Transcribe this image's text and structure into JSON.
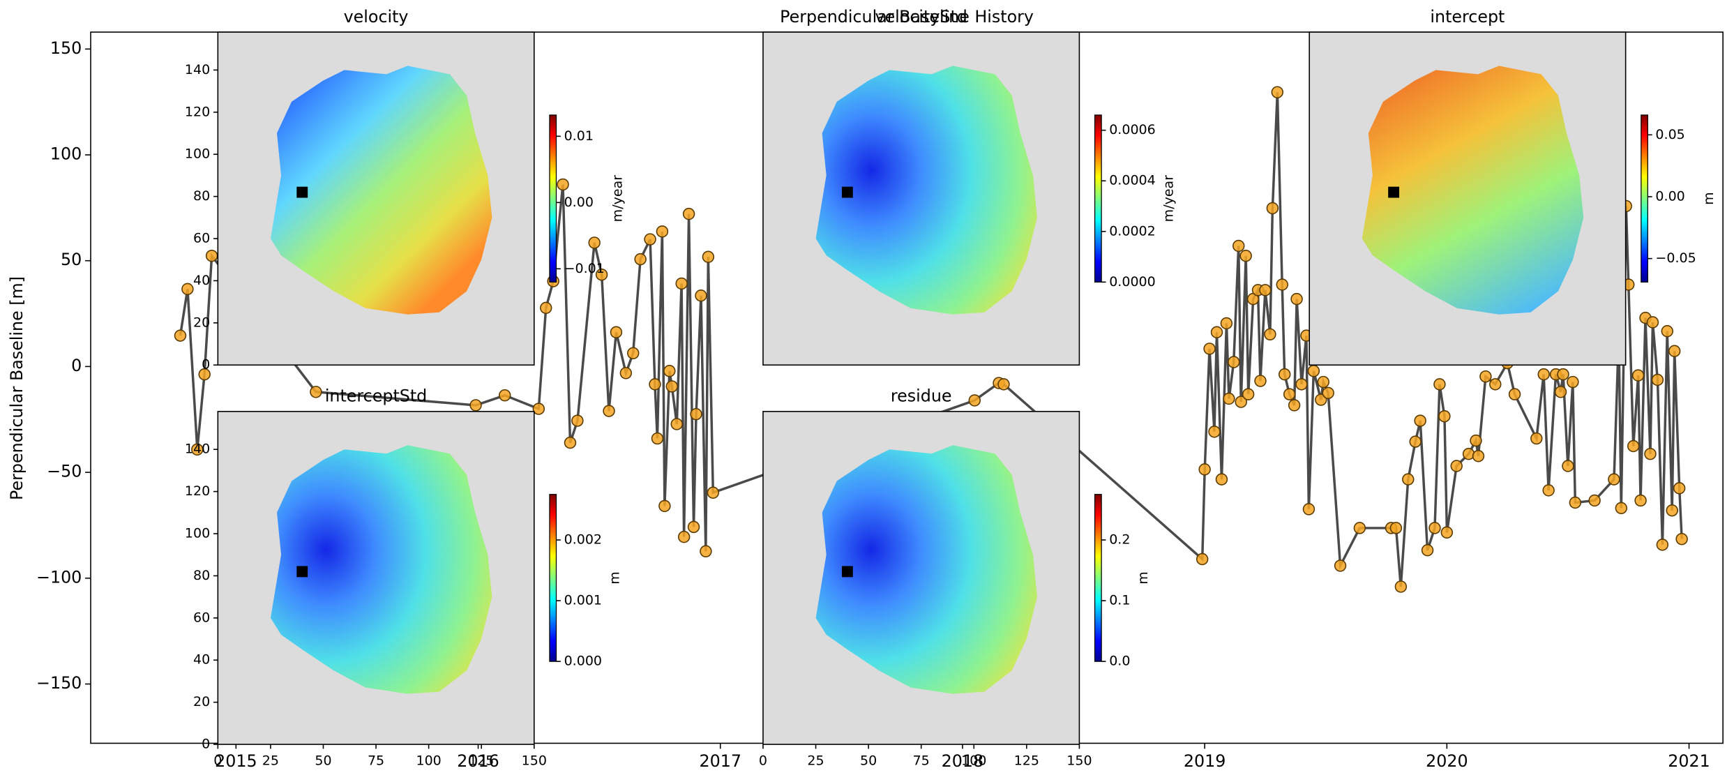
{
  "chart_data": [
    {
      "type": "line",
      "title": "Perpendicular Baseline History",
      "ylabel": "Perpendicular Baseline [m]",
      "x": [
        2014.77,
        2014.8,
        2014.84,
        2014.87,
        2014.9,
        2015.33,
        2015.99,
        2016.11,
        2016.25,
        2016.28,
        2016.31,
        2016.35,
        2016.38,
        2016.41,
        2016.48,
        2016.51,
        2016.54,
        2016.57,
        2016.61,
        2016.64,
        2016.67,
        2016.71,
        2016.73,
        2016.74,
        2016.76,
        2016.77,
        2016.79,
        2016.8,
        2016.82,
        2016.84,
        2016.85,
        2016.87,
        2016.89,
        2016.9,
        2016.92,
        2016.94,
        2016.95,
        2016.97,
        2018.05,
        2018.15,
        2018.17,
        2018.99,
        2019.0,
        2019.02,
        2019.04,
        2019.05,
        2019.07,
        2019.09,
        2019.1,
        2019.12,
        2019.14,
        2019.15,
        2019.17,
        2019.18,
        2019.2,
        2019.22,
        2019.23,
        2019.25,
        2019.27,
        2019.28,
        2019.3,
        2019.32,
        2019.33,
        2019.35,
        2019.37,
        2019.38,
        2019.4,
        2019.42,
        2019.43,
        2019.45,
        2019.48,
        2019.49,
        2019.51,
        2019.56,
        2019.64,
        2019.77,
        2019.79,
        2019.81,
        2019.84,
        2019.87,
        2019.89,
        2019.92,
        2019.95,
        2019.97,
        2019.99,
        2020.0,
        2020.04,
        2020.09,
        2020.12,
        2020.13,
        2020.16,
        2020.2,
        2020.25,
        2020.28,
        2020.37,
        2020.4,
        2020.42,
        2020.45,
        2020.47,
        2020.48,
        2020.5,
        2020.52,
        2020.53,
        2020.61,
        2020.69,
        2020.71,
        2020.72,
        2020.74,
        2020.75,
        2020.77,
        2020.79,
        2020.8,
        2020.82,
        2020.84,
        2020.85,
        2020.87,
        2020.89,
        2020.91,
        2020.93,
        2020.94,
        2020.96,
        2020.97
      ],
      "values": [
        14.6,
        36.6,
        -39.2,
        -3.7,
        52.3,
        -12,
        -18.3,
        -13.6,
        -20,
        27.7,
        40.3,
        86,
        -36,
        -25.6,
        58.5,
        43.4,
        -21,
        16.2,
        -3.1,
        6.3,
        50.7,
        60.1,
        -8.4,
        -34,
        63.8,
        -65.9,
        -2.1,
        -9.4,
        -27.2,
        39.2,
        -80.5,
        72.1,
        -75.8,
        -22.5,
        33.5,
        -87.3,
        51.8,
        -59.6,
        -16,
        -7.8,
        -8.4,
        -91,
        -48.6,
        8.4,
        -30.8,
        16.2,
        -53.3,
        20.4,
        -15.2,
        2.1,
        57,
        -16.7,
        52.3,
        -13.1,
        31.9,
        36.1,
        -6.8,
        36.1,
        15.2,
        74.8,
        129.6,
        38.7,
        -3.7,
        -13.1,
        -18.3,
        31.9,
        -8.4,
        14.6,
        -67.4,
        -2.1,
        -15.7,
        -7.3,
        -12.5,
        -94.1,
        -76.3,
        -76.3,
        -76.3,
        -104,
        -53.3,
        -35.5,
        -25.6,
        -86.8,
        -76.3,
        -8.4,
        -23.5,
        -78.4,
        -47,
        -41.3,
        -35,
        -42.3,
        -4.7,
        -8.4,
        1.6,
        -13.1,
        -34,
        -3.7,
        -58.5,
        -3.7,
        -12,
        -3.7,
        -47,
        -7.3,
        -64.3,
        -63.3,
        -53.3,
        15.2,
        -66.9,
        75.8,
        38.7,
        -37.6,
        -4.2,
        -63.3,
        23,
        -41.3,
        20.9,
        -6.3,
        -84.2,
        16.7,
        -68,
        7.3,
        -57.5,
        -81.5
      ],
      "line_color": "#4a4a4a",
      "marker_color": "#f5a623",
      "xlim": [
        2014.4,
        2021.14
      ],
      "xticks": [
        2015,
        2016,
        2017,
        2018,
        2019,
        2020,
        2021
      ],
      "ylim": [
        -178,
        158
      ],
      "yticks": [
        {
          "value": -150,
          "label": "−150"
        },
        {
          "value": -100,
          "label": "−100"
        },
        {
          "value": -50,
          "label": "−50"
        },
        0,
        50,
        100,
        150
      ]
    },
    {
      "type": "image",
      "title": "velocity",
      "xlim": [
        0,
        150
      ],
      "ylim": [
        0,
        158
      ],
      "yticks": [
        0,
        20,
        40,
        60,
        80,
        100,
        120,
        140
      ],
      "colorbar": {
        "label": "m/year",
        "lim": [
          -0.012,
          0.0132
        ],
        "ticks": [
          {
            "value": -0.01,
            "label": "−0.01"
          },
          {
            "value": 0,
            "label": "0.00"
          },
          0.01
        ]
      }
    },
    {
      "type": "image",
      "title": "velocityStd",
      "xlim": [
        0,
        150
      ],
      "ylim": [
        0,
        158
      ],
      "colorbar": {
        "label": "m/year",
        "lim": [
          0,
          0.00066
        ],
        "ticks": [
          {
            "value": 0,
            "label": "0.0000"
          },
          {
            "value": 0.0002,
            "label": "0.0002"
          },
          {
            "value": 0.0004,
            "label": "0.0004"
          },
          {
            "value": 0.0006,
            "label": "0.0006"
          }
        ]
      }
    },
    {
      "type": "image",
      "title": "intercept",
      "xlim": [
        0,
        150
      ],
      "ylim": [
        0,
        158
      ],
      "colorbar": {
        "label": "m",
        "lim": [
          -0.069,
          0.066
        ],
        "ticks": [
          {
            "value": -0.05,
            "label": "−0.05"
          },
          {
            "value": 0,
            "label": "0.00"
          },
          0.05
        ]
      }
    },
    {
      "type": "image",
      "title": "interceptStd",
      "xlim": [
        0,
        150
      ],
      "ylim": [
        0,
        158
      ],
      "xticks": [
        0,
        25,
        50,
        75,
        100,
        125,
        150
      ],
      "yticks": [
        0,
        20,
        40,
        60,
        80,
        100,
        120,
        140
      ],
      "colorbar": {
        "label": "m",
        "lim": [
          0,
          0.00275
        ],
        "ticks": [
          {
            "value": 0,
            "label": "0.000"
          },
          0.001,
          0.002
        ]
      }
    },
    {
      "type": "image",
      "title": "residue",
      "xlim": [
        0,
        150
      ],
      "ylim": [
        0,
        158
      ],
      "xticks": [
        0,
        25,
        50,
        75,
        100,
        125,
        150
      ],
      "colorbar": {
        "label": "m",
        "lim": [
          0,
          0.275
        ],
        "ticks": [
          {
            "value": 0,
            "label": "0.0"
          },
          0.1,
          0.2
        ]
      }
    }
  ]
}
